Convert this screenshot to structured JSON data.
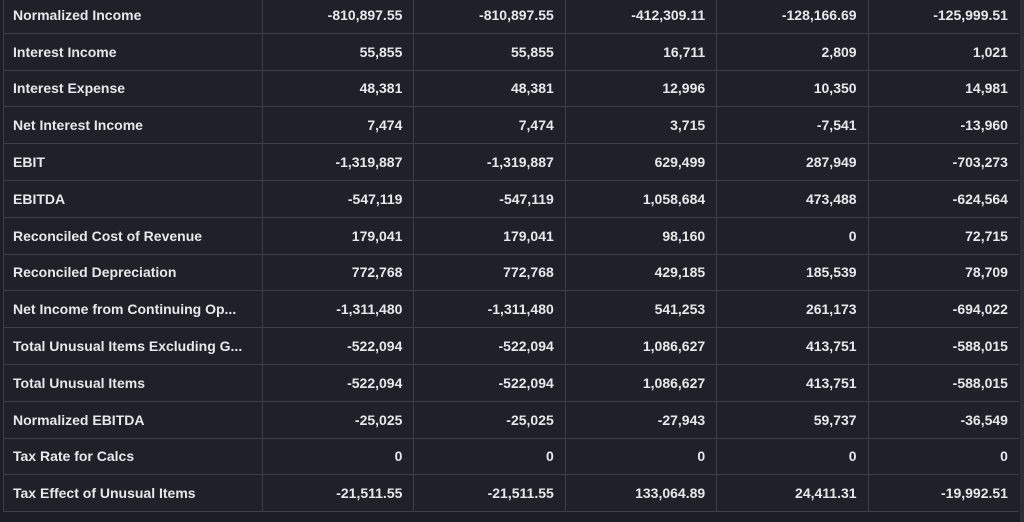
{
  "table": {
    "rows": [
      {
        "label": "Normalized Income",
        "values": [
          "-810,897.55",
          "-810,897.55",
          "-412,309.11",
          "-128,166.69",
          "-125,999.51"
        ]
      },
      {
        "label": "Interest Income",
        "values": [
          "55,855",
          "55,855",
          "16,711",
          "2,809",
          "1,021"
        ]
      },
      {
        "label": "Interest Expense",
        "values": [
          "48,381",
          "48,381",
          "12,996",
          "10,350",
          "14,981"
        ]
      },
      {
        "label": "Net Interest Income",
        "values": [
          "7,474",
          "7,474",
          "3,715",
          "-7,541",
          "-13,960"
        ]
      },
      {
        "label": "EBIT",
        "values": [
          "-1,319,887",
          "-1,319,887",
          "629,499",
          "287,949",
          "-703,273"
        ]
      },
      {
        "label": "EBITDA",
        "values": [
          "-547,119",
          "-547,119",
          "1,058,684",
          "473,488",
          "-624,564"
        ]
      },
      {
        "label": "Reconciled Cost of Revenue",
        "values": [
          "179,041",
          "179,041",
          "98,160",
          "0",
          "72,715"
        ]
      },
      {
        "label": "Reconciled Depreciation",
        "values": [
          "772,768",
          "772,768",
          "429,185",
          "185,539",
          "78,709"
        ]
      },
      {
        "label": "Net Income from Continuing Op...",
        "values": [
          "-1,311,480",
          "-1,311,480",
          "541,253",
          "261,173",
          "-694,022"
        ]
      },
      {
        "label": "Total Unusual Items Excluding G...",
        "values": [
          "-522,094",
          "-522,094",
          "1,086,627",
          "413,751",
          "-588,015"
        ]
      },
      {
        "label": "Total Unusual Items",
        "values": [
          "-522,094",
          "-522,094",
          "1,086,627",
          "413,751",
          "-588,015"
        ]
      },
      {
        "label": "Normalized EBITDA",
        "values": [
          "-25,025",
          "-25,025",
          "-27,943",
          "59,737",
          "-36,549"
        ]
      },
      {
        "label": "Tax Rate for Calcs",
        "values": [
          "0",
          "0",
          "0",
          "0",
          "0"
        ]
      },
      {
        "label": "Tax Effect of Unusual Items",
        "values": [
          "-21,511.55",
          "-21,511.55",
          "133,064.89",
          "24,411.31",
          "-19,992.51"
        ]
      }
    ]
  },
  "colors": {
    "background": "#1b1f25",
    "cell_background": "#1e2228",
    "grid_line": "#3a4048",
    "text": "#e6e8eb"
  }
}
